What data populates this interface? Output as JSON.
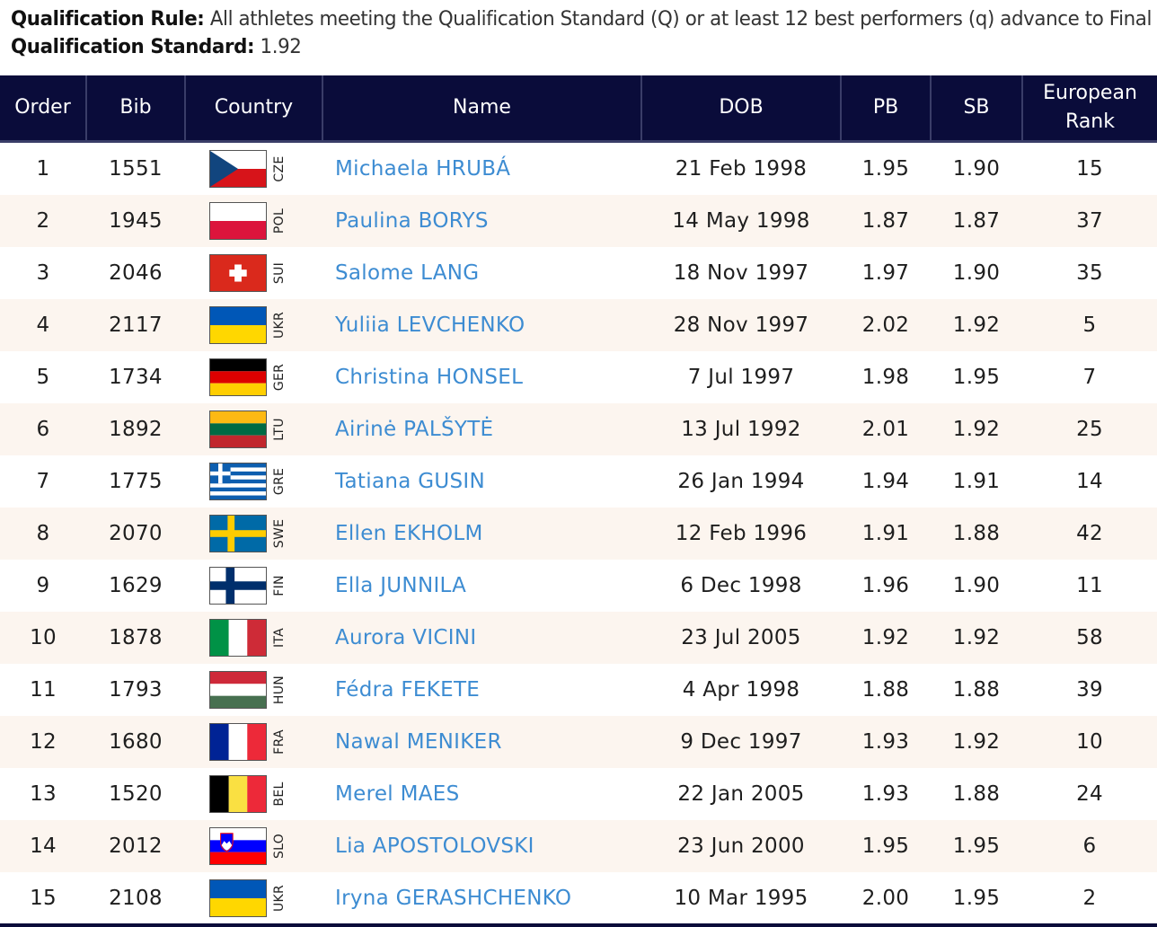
{
  "qualification": {
    "rule_label": "Qualification Rule:",
    "rule_text": "All athletes meeting the Qualification Standard (Q) or at least 12 best performers (q) advance to Final",
    "standard_label": "Qualification Standard:",
    "standard_value": "1.92"
  },
  "table": {
    "headers": {
      "order": "Order",
      "bib": "Bib",
      "country": "Country",
      "name": "Name",
      "dob": "DOB",
      "pb": "PB",
      "sb": "SB",
      "rank_line1": "European",
      "rank_line2": "Rank"
    },
    "rows": [
      {
        "order": "1",
        "bib": "1551",
        "country": "CZE",
        "name": "Michaela HRUBÁ",
        "dob": "21 Feb 1998",
        "pb": "1.95",
        "sb": "1.90",
        "rank": "15"
      },
      {
        "order": "2",
        "bib": "1945",
        "country": "POL",
        "name": "Paulina BORYS",
        "dob": "14 May 1998",
        "pb": "1.87",
        "sb": "1.87",
        "rank": "37"
      },
      {
        "order": "3",
        "bib": "2046",
        "country": "SUI",
        "name": "Salome LANG",
        "dob": "18 Nov 1997",
        "pb": "1.97",
        "sb": "1.90",
        "rank": "35"
      },
      {
        "order": "4",
        "bib": "2117",
        "country": "UKR",
        "name": "Yuliia LEVCHENKO",
        "dob": "28 Nov 1997",
        "pb": "2.02",
        "sb": "1.92",
        "rank": "5"
      },
      {
        "order": "5",
        "bib": "1734",
        "country": "GER",
        "name": "Christina HONSEL",
        "dob": "7 Jul 1997",
        "pb": "1.98",
        "sb": "1.95",
        "rank": "7"
      },
      {
        "order": "6",
        "bib": "1892",
        "country": "LTU",
        "name": "Airinė PALŠYTĖ",
        "dob": "13 Jul 1992",
        "pb": "2.01",
        "sb": "1.92",
        "rank": "25"
      },
      {
        "order": "7",
        "bib": "1775",
        "country": "GRE",
        "name": "Tatiana GUSIN",
        "dob": "26 Jan 1994",
        "pb": "1.94",
        "sb": "1.91",
        "rank": "14"
      },
      {
        "order": "8",
        "bib": "2070",
        "country": "SWE",
        "name": "Ellen EKHOLM",
        "dob": "12 Feb 1996",
        "pb": "1.91",
        "sb": "1.88",
        "rank": "42"
      },
      {
        "order": "9",
        "bib": "1629",
        "country": "FIN",
        "name": "Ella JUNNILA",
        "dob": "6 Dec 1998",
        "pb": "1.96",
        "sb": "1.90",
        "rank": "11"
      },
      {
        "order": "10",
        "bib": "1878",
        "country": "ITA",
        "name": "Aurora VICINI",
        "dob": "23 Jul 2005",
        "pb": "1.92",
        "sb": "1.92",
        "rank": "58"
      },
      {
        "order": "11",
        "bib": "1793",
        "country": "HUN",
        "name": "Fédra FEKETE",
        "dob": "4 Apr 1998",
        "pb": "1.88",
        "sb": "1.88",
        "rank": "39"
      },
      {
        "order": "12",
        "bib": "1680",
        "country": "FRA",
        "name": "Nawal MENIKER",
        "dob": "9 Dec 1997",
        "pb": "1.93",
        "sb": "1.92",
        "rank": "10"
      },
      {
        "order": "13",
        "bib": "1520",
        "country": "BEL",
        "name": "Merel MAES",
        "dob": "22 Jan 2005",
        "pb": "1.93",
        "sb": "1.88",
        "rank": "24"
      },
      {
        "order": "14",
        "bib": "2012",
        "country": "SLO",
        "name": "Lia APOSTOLOVSKI",
        "dob": "23 Jun 2000",
        "pb": "1.95",
        "sb": "1.95",
        "rank": "6"
      },
      {
        "order": "15",
        "bib": "2108",
        "country": "UKR",
        "name": "Iryna GERASHCHENKO",
        "dob": "10 Mar 1995",
        "pb": "2.00",
        "sb": "1.95",
        "rank": "2"
      }
    ]
  },
  "colors": {
    "header_bg": "#0a0c3a",
    "name_link": "#3d8cd2",
    "row_alt": "#fcf5ef"
  }
}
